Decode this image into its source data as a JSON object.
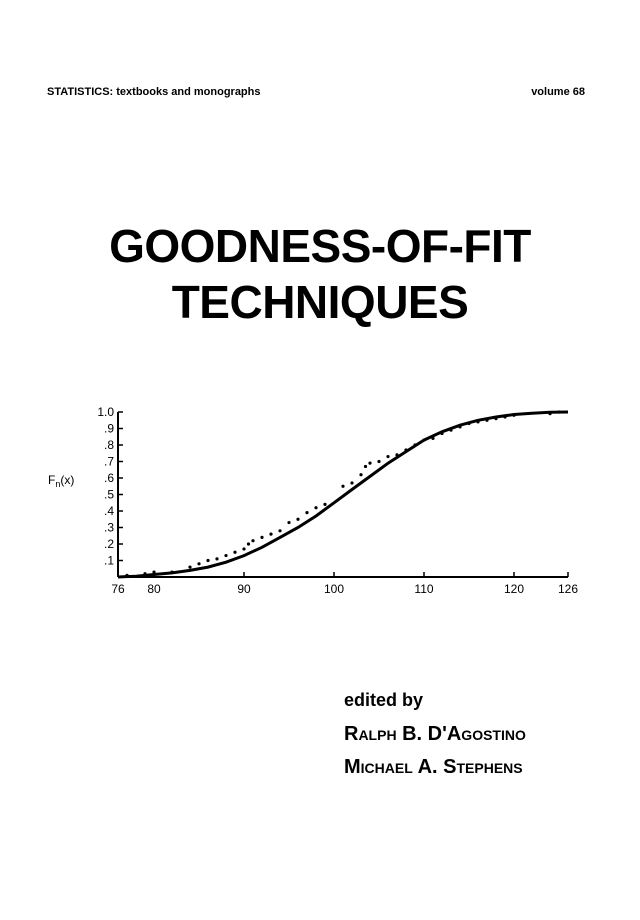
{
  "series": {
    "name": "STATISTICS: textbooks and monographs",
    "volume": "volume 68"
  },
  "title": {
    "line1": "GOODNESS-OF-FIT",
    "line2": "TECHNIQUES"
  },
  "editors": {
    "label": "edited by",
    "names": [
      "Ralph B. D'Agostino",
      "Michael A. Stephens"
    ]
  },
  "chart_data": {
    "type": "line",
    "ylabel": "F_n(x)",
    "xlim": [
      76,
      126
    ],
    "ylim": [
      0,
      1.0
    ],
    "x_ticks": [
      "76",
      "80",
      "90",
      "100",
      "110",
      "120",
      "126"
    ],
    "y_ticks": [
      ".1",
      ".2",
      ".3",
      ".4",
      ".5",
      ".6",
      ".7",
      ".8",
      ".9",
      "1.0"
    ],
    "fitted_curve": {
      "x": [
        76,
        78,
        80,
        82,
        84,
        86,
        88,
        90,
        92,
        94,
        96,
        98,
        100,
        102,
        104,
        106,
        108,
        110,
        112,
        114,
        116,
        118,
        120,
        122,
        124,
        126
      ],
      "y": [
        0.0,
        0.005,
        0.015,
        0.025,
        0.04,
        0.06,
        0.09,
        0.13,
        0.18,
        0.24,
        0.3,
        0.37,
        0.45,
        0.53,
        0.61,
        0.69,
        0.76,
        0.83,
        0.88,
        0.92,
        0.95,
        0.97,
        0.985,
        0.993,
        0.998,
        1.0
      ]
    },
    "empirical_points": {
      "x": [
        77,
        79,
        80,
        82,
        84,
        85,
        86,
        87,
        88,
        89,
        90,
        90.5,
        91,
        92,
        93,
        94,
        95,
        96,
        97,
        98,
        99,
        101,
        102,
        103,
        103.5,
        104,
        105,
        106,
        107,
        108,
        109,
        110,
        111,
        112,
        113,
        114,
        115,
        116,
        117,
        118,
        119,
        120,
        124,
        125
      ],
      "y": [
        0.01,
        0.02,
        0.03,
        0.03,
        0.06,
        0.08,
        0.1,
        0.11,
        0.13,
        0.15,
        0.17,
        0.2,
        0.22,
        0.24,
        0.26,
        0.28,
        0.33,
        0.35,
        0.39,
        0.42,
        0.44,
        0.55,
        0.57,
        0.62,
        0.67,
        0.69,
        0.7,
        0.73,
        0.74,
        0.77,
        0.8,
        0.83,
        0.84,
        0.87,
        0.89,
        0.91,
        0.93,
        0.94,
        0.95,
        0.96,
        0.97,
        0.98,
        0.99,
        1.0
      ]
    }
  }
}
